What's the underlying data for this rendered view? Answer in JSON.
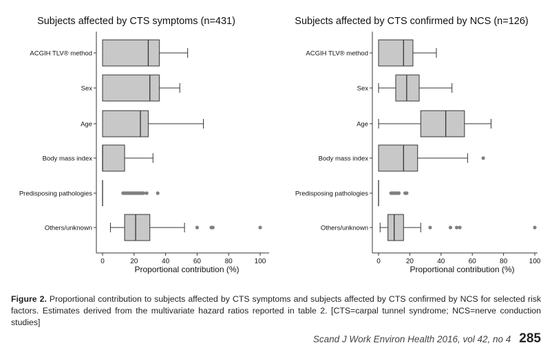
{
  "chart_data": [
    {
      "type": "boxplot",
      "title": "Subjects affected by CTS symptoms (n=431)",
      "xlabel": "Proportional contribution (%)",
      "xlim": [
        0,
        100
      ],
      "xticks": [
        0,
        20,
        40,
        60,
        80,
        100
      ],
      "grid": false,
      "categories": [
        "ACGIH TLV® method",
        "Sex",
        "Age",
        "Body mass index",
        "Predisposing pathologies",
        "Others/unknown"
      ],
      "boxes": [
        {
          "min": 0,
          "q1": 0,
          "median": 29,
          "q3": 36,
          "max": 54,
          "outliers": []
        },
        {
          "min": 0,
          "q1": 0,
          "median": 30,
          "q3": 36,
          "max": 49,
          "outliers": []
        },
        {
          "min": 0,
          "q1": 0,
          "median": 24,
          "q3": 29,
          "max": 64,
          "outliers": []
        },
        {
          "min": 0,
          "q1": 0,
          "median": 0,
          "q3": 14,
          "max": 32,
          "outliers": []
        },
        {
          "min": 0,
          "q1": 0,
          "median": 0,
          "q3": 0,
          "max": 0,
          "outliers": [
            13,
            14,
            15,
            16,
            17,
            18,
            19,
            20,
            21,
            22,
            23,
            24,
            25,
            26,
            28,
            35
          ]
        },
        {
          "min": 5,
          "q1": 14,
          "median": 21,
          "q3": 30,
          "max": 52,
          "outliers": [
            60,
            69,
            70,
            100
          ]
        }
      ]
    },
    {
      "type": "boxplot",
      "title": "Subjects affected by CTS confirmed by NCS (n=126)",
      "xlabel": "Proportional contribution (%)",
      "xlim": [
        0,
        100
      ],
      "xticks": [
        0,
        20,
        40,
        60,
        80,
        100
      ],
      "grid": false,
      "categories": [
        "ACGIH TLV® method",
        "Sex",
        "Age",
        "Body mass index",
        "Predisposing pathologies",
        "Others/unknown"
      ],
      "boxes": [
        {
          "min": 0,
          "q1": 0,
          "median": 16,
          "q3": 22,
          "max": 37,
          "outliers": []
        },
        {
          "min": 0,
          "q1": 11,
          "median": 18,
          "q3": 26,
          "max": 47,
          "outliers": []
        },
        {
          "min": 0,
          "q1": 27,
          "median": 43,
          "q3": 55,
          "max": 72,
          "outliers": []
        },
        {
          "min": 0,
          "q1": 0,
          "median": 16,
          "q3": 25,
          "max": 57,
          "outliers": [
            67
          ]
        },
        {
          "min": 0,
          "q1": 0,
          "median": 0,
          "q3": 0,
          "max": 0,
          "outliers": [
            8,
            9,
            10,
            11,
            12,
            13,
            17,
            18
          ]
        },
        {
          "min": 1,
          "q1": 6,
          "median": 10,
          "q3": 16,
          "max": 27,
          "outliers": [
            33,
            46,
            50,
            52,
            100
          ]
        }
      ]
    }
  ],
  "caption": {
    "label": "Figure 2.",
    "text": " Proportional contribution to subjects affected by CTS symptoms and subjects affected by CTS confirmed by NCS for selected risk factors. Estimates derived from the multivariate hazard ratios reported in table 2. [CTS=carpal tunnel syndrome; NCS=nerve conduction studies]"
  },
  "footer": {
    "journal": "Scand J Work Environ Health 2016, vol 42, no 4",
    "page_number": "285"
  },
  "colors": {
    "box_fill": "#c8c8c8",
    "stroke": "#333333",
    "outlier": "#808080",
    "text": "#111111"
  }
}
